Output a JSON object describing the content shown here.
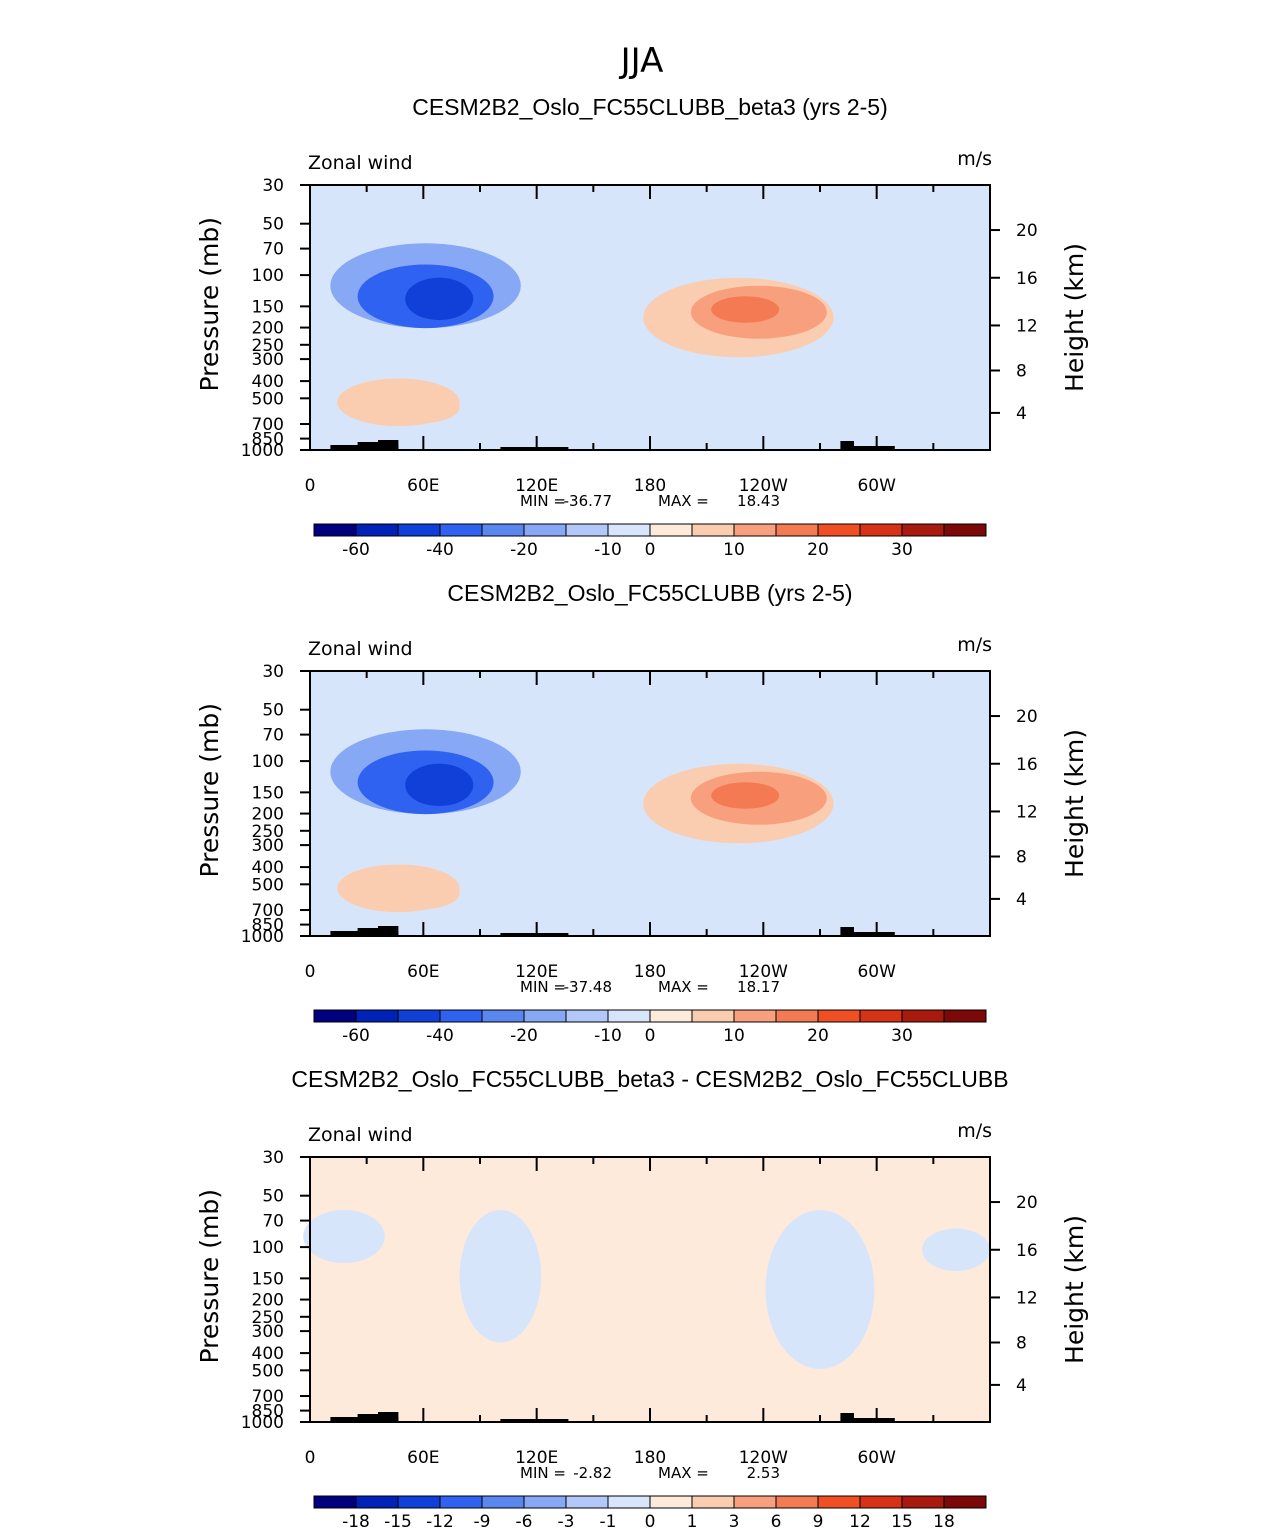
{
  "figure_title": "JJA",
  "colors": {
    "bg": "#ffffff",
    "ink": "#000000",
    "topography": "#000000"
  },
  "chart_data": [
    {
      "type": "contour",
      "title": "CESM2B2_Oslo_FC55CLUBB_beta3 (yrs 2-5)",
      "variable": "Zonal wind",
      "units": "m/s",
      "ylabel": "Pressure (mb)",
      "y2label": "Height (km)",
      "x_ticks": [
        "0",
        "60E",
        "120E",
        "180",
        "120W",
        "60W"
      ],
      "p_ticks": [
        "30",
        "50",
        "70",
        "100",
        "150",
        "200",
        "250",
        "300",
        "400",
        "500",
        "700",
        "850",
        "1000"
      ],
      "z_ticks": [
        "20",
        "16",
        "12",
        "8",
        "4"
      ],
      "min_label": "MIN =",
      "min": "-36.77",
      "max_label": "MAX =",
      "max": "18.43",
      "colorbar_labels": [
        "-60",
        "-40",
        "-20",
        "-10",
        "0",
        "10",
        "20",
        "30"
      ],
      "colorbar_colors": [
        "#00007f",
        "#0022b8",
        "#1140d8",
        "#2f62f0",
        "#5a86f0",
        "#86a8f5",
        "#b2c8f8",
        "#d7e5fb",
        "#fdeadb",
        "#fbcdb0",
        "#f8a07e",
        "#f47a53",
        "#f04f24",
        "#d63215",
        "#a81a0e",
        "#7d0808"
      ],
      "features": [
        {
          "kind": "blob",
          "cx": 0.17,
          "cy": 0.38,
          "rx": 0.14,
          "ry": 0.16,
          "level": -20
        },
        {
          "kind": "blob",
          "cx": 0.17,
          "cy": 0.42,
          "rx": 0.1,
          "ry": 0.12,
          "level": -30
        },
        {
          "kind": "blob",
          "cx": 0.19,
          "cy": 0.43,
          "rx": 0.05,
          "ry": 0.08,
          "level": -35
        },
        {
          "kind": "blob",
          "cx": 0.13,
          "cy": 0.82,
          "rx": 0.09,
          "ry": 0.09,
          "level": 5
        },
        {
          "kind": "blob",
          "cx": 0.16,
          "cy": 0.84,
          "rx": 0.06,
          "ry": 0.06,
          "level": 8
        },
        {
          "kind": "blob",
          "cx": 0.63,
          "cy": 0.5,
          "rx": 0.14,
          "ry": 0.15,
          "level": 5
        },
        {
          "kind": "blob",
          "cx": 0.66,
          "cy": 0.48,
          "rx": 0.1,
          "ry": 0.1,
          "level": 10
        },
        {
          "kind": "blob",
          "cx": 0.64,
          "cy": 0.47,
          "rx": 0.05,
          "ry": 0.05,
          "level": 15
        },
        {
          "kind": "blob",
          "cx": 0.6,
          "cy": 0.92,
          "rx": 0.18,
          "ry": 0.05,
          "level": -5
        }
      ]
    },
    {
      "type": "contour",
      "title": "CESM2B2_Oslo_FC55CLUBB (yrs 2-5)",
      "variable": "Zonal wind",
      "units": "m/s",
      "ylabel": "Pressure (mb)",
      "y2label": "Height (km)",
      "x_ticks": [
        "0",
        "60E",
        "120E",
        "180",
        "120W",
        "60W"
      ],
      "p_ticks": [
        "30",
        "50",
        "70",
        "100",
        "150",
        "200",
        "250",
        "300",
        "400",
        "500",
        "700",
        "850",
        "1000"
      ],
      "z_ticks": [
        "20",
        "16",
        "12",
        "8",
        "4"
      ],
      "min_label": "MIN =",
      "min": "-37.48",
      "max_label": "MAX =",
      "max": "18.17",
      "colorbar_labels": [
        "-60",
        "-40",
        "-20",
        "-10",
        "0",
        "10",
        "20",
        "30"
      ],
      "colorbar_colors": [
        "#00007f",
        "#0022b8",
        "#1140d8",
        "#2f62f0",
        "#5a86f0",
        "#86a8f5",
        "#b2c8f8",
        "#d7e5fb",
        "#fdeadb",
        "#fbcdb0",
        "#f8a07e",
        "#f47a53",
        "#f04f24",
        "#d63215",
        "#a81a0e",
        "#7d0808"
      ],
      "features": [
        {
          "kind": "blob",
          "cx": 0.17,
          "cy": 0.38,
          "rx": 0.14,
          "ry": 0.16,
          "level": -20
        },
        {
          "kind": "blob",
          "cx": 0.17,
          "cy": 0.42,
          "rx": 0.1,
          "ry": 0.12,
          "level": -30
        },
        {
          "kind": "blob",
          "cx": 0.19,
          "cy": 0.43,
          "rx": 0.05,
          "ry": 0.08,
          "level": -35
        },
        {
          "kind": "blob",
          "cx": 0.13,
          "cy": 0.82,
          "rx": 0.09,
          "ry": 0.09,
          "level": 5
        },
        {
          "kind": "blob",
          "cx": 0.16,
          "cy": 0.84,
          "rx": 0.06,
          "ry": 0.06,
          "level": 8
        },
        {
          "kind": "blob",
          "cx": 0.63,
          "cy": 0.5,
          "rx": 0.14,
          "ry": 0.15,
          "level": 5
        },
        {
          "kind": "blob",
          "cx": 0.66,
          "cy": 0.48,
          "rx": 0.1,
          "ry": 0.1,
          "level": 10
        },
        {
          "kind": "blob",
          "cx": 0.64,
          "cy": 0.47,
          "rx": 0.05,
          "ry": 0.05,
          "level": 15
        },
        {
          "kind": "blob",
          "cx": 0.6,
          "cy": 0.92,
          "rx": 0.18,
          "ry": 0.05,
          "level": -5
        }
      ]
    },
    {
      "type": "contour",
      "title": "CESM2B2_Oslo_FC55CLUBB_beta3 - CESM2B2_Oslo_FC55CLUBB",
      "variable": "Zonal wind",
      "units": "m/s",
      "ylabel": "Pressure (mb)",
      "y2label": "Height (km)",
      "x_ticks": [
        "0",
        "60E",
        "120E",
        "180",
        "120W",
        "60W"
      ],
      "p_ticks": [
        "30",
        "50",
        "70",
        "100",
        "150",
        "200",
        "250",
        "300",
        "400",
        "500",
        "700",
        "850",
        "1000"
      ],
      "z_ticks": [
        "20",
        "16",
        "12",
        "8",
        "4"
      ],
      "min_label": "MIN =",
      "min": "-2.82",
      "max_label": "MAX =",
      "max": "2.53",
      "colorbar_labels": [
        "-18",
        "-15",
        "-12",
        "-9",
        "-6",
        "-3",
        "-1",
        "0",
        "1",
        "3",
        "6",
        "9",
        "12",
        "15",
        "18"
      ],
      "colorbar_colors": [
        "#00007f",
        "#0022b8",
        "#1140d8",
        "#2f62f0",
        "#5a86f0",
        "#86a8f5",
        "#b2c8f8",
        "#d7e5fb",
        "#fdeadb",
        "#fbcdb0",
        "#f8a07e",
        "#f47a53",
        "#f04f24",
        "#d63215",
        "#a81a0e",
        "#7d0808"
      ],
      "features": [
        {
          "kind": "blob",
          "cx": 0.05,
          "cy": 0.3,
          "rx": 0.06,
          "ry": 0.1,
          "level": -1
        },
        {
          "kind": "blob",
          "cx": 0.28,
          "cy": 0.45,
          "rx": 0.06,
          "ry": 0.25,
          "level": -1
        },
        {
          "kind": "blob",
          "cx": 0.52,
          "cy": 0.3,
          "rx": 0.1,
          "ry": 0.12,
          "level": 1
        },
        {
          "kind": "blob",
          "cx": 0.75,
          "cy": 0.5,
          "rx": 0.08,
          "ry": 0.3,
          "level": -1
        },
        {
          "kind": "blob",
          "cx": 0.88,
          "cy": 0.55,
          "rx": 0.05,
          "ry": 0.1,
          "level": 1
        },
        {
          "kind": "blob",
          "cx": 0.95,
          "cy": 0.35,
          "rx": 0.05,
          "ry": 0.08,
          "level": -1
        }
      ]
    }
  ]
}
